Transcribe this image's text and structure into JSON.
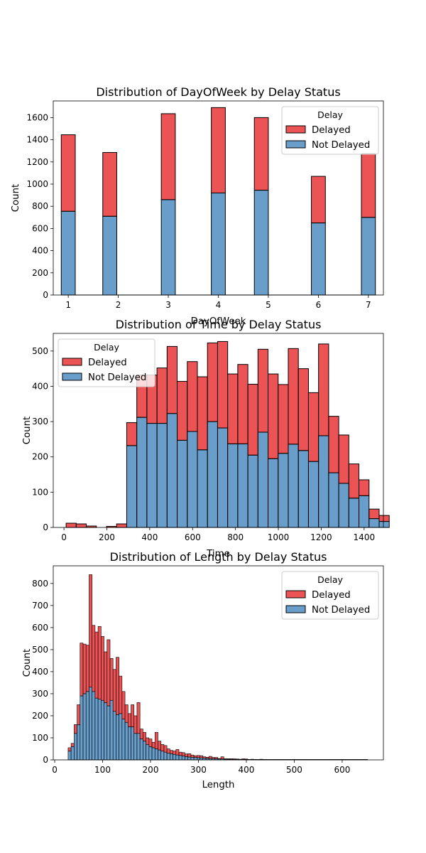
{
  "colors": {
    "delayed": "#e41a1c",
    "not_delayed": "#377eb8",
    "edge": "#000000"
  },
  "chart_data": [
    {
      "type": "bar",
      "stacked": true,
      "title": "Distribution of DayOfWeek by Delay Status",
      "xlabel": "DayOfWeek",
      "ylabel": "Count",
      "xlim": [
        0.7,
        7.3
      ],
      "ylim": [
        0,
        1750
      ],
      "xticks": [
        1,
        2,
        3,
        4,
        5,
        6,
        7
      ],
      "yticks": [
        0,
        200,
        400,
        600,
        800,
        1000,
        1200,
        1400,
        1600
      ],
      "bin_width": 0.28,
      "bins": [
        1.0,
        1.83,
        3.0,
        4.0,
        4.86,
        6.0,
        7.0
      ],
      "legend": {
        "title": "Delay",
        "position": "upper right",
        "entries": [
          "Delayed",
          "Not Delayed"
        ]
      },
      "series": [
        {
          "name": "Not Delayed",
          "values": [
            755,
            710,
            860,
            920,
            945,
            650,
            700
          ]
        },
        {
          "name": "Delayed",
          "values": [
            690,
            575,
            775,
            770,
            655,
            420,
            575
          ]
        }
      ]
    },
    {
      "type": "bar",
      "stacked": true,
      "title": "Distribution of Time by Delay Status",
      "xlabel": "Time",
      "ylabel": "Count",
      "xlim": [
        -50,
        1490
      ],
      "ylim": [
        0,
        550
      ],
      "xticks": [
        0,
        200,
        400,
        600,
        800,
        1000,
        1200,
        1400
      ],
      "yticks": [
        0,
        100,
        200,
        300,
        400,
        500
      ],
      "bin_start": 10,
      "bin_width": 47.1,
      "legend": {
        "title": "Delay",
        "position": "upper left",
        "entries": [
          "Delayed",
          "Not Delayed"
        ]
      },
      "series": [
        {
          "name": "Not Delayed",
          "values": [
            0,
            0,
            0,
            0,
            0,
            0,
            232,
            312,
            295,
            295,
            323,
            247,
            272,
            220,
            300,
            282,
            237,
            237,
            205,
            270,
            195,
            210,
            236,
            218,
            187,
            260,
            155,
            125,
            83,
            90,
            25,
            17
          ]
        },
        {
          "name": "Delayed",
          "values": [
            12,
            10,
            4,
            0,
            3,
            10,
            65,
            120,
            137,
            157,
            190,
            167,
            198,
            207,
            223,
            245,
            198,
            225,
            201,
            235,
            240,
            195,
            271,
            232,
            195,
            260,
            160,
            137,
            97,
            45,
            27,
            17
          ]
        }
      ]
    },
    {
      "type": "bar",
      "stacked": true,
      "title": "Distribution of Length by Delay Status",
      "xlabel": "Length",
      "ylabel": "Count",
      "xlim": [
        -3,
        686
      ],
      "ylim": [
        0,
        880
      ],
      "xticks": [
        0,
        100,
        200,
        300,
        400,
        500,
        600
      ],
      "yticks": [
        0,
        100,
        200,
        300,
        400,
        500,
        600,
        700,
        800
      ],
      "bin_start": 28,
      "bin_width": 6.25,
      "legend": {
        "title": "Delay",
        "position": "upper right",
        "entries": [
          "Delayed",
          "Not Delayed"
        ]
      },
      "series": [
        {
          "name": "Not Delayed",
          "values": [
            40,
            60,
            120,
            160,
            290,
            300,
            310,
            330,
            310,
            280,
            275,
            270,
            260,
            245,
            270,
            220,
            205,
            210,
            185,
            170,
            150,
            150,
            120,
            120,
            95,
            85,
            70,
            60,
            55,
            50,
            45,
            40,
            35,
            30,
            28,
            25,
            22,
            20,
            18,
            15,
            13,
            12,
            11,
            10,
            9,
            8,
            7,
            6,
            6,
            5,
            4,
            4,
            3,
            3,
            3,
            2,
            2,
            2,
            2,
            2,
            1,
            1,
            1,
            1,
            1,
            1,
            1,
            1,
            1,
            1,
            1,
            1,
            1,
            1,
            1,
            1,
            1,
            1,
            1,
            1,
            1,
            1,
            1,
            1,
            1,
            1,
            1,
            1,
            1,
            1,
            1,
            1,
            1,
            1,
            1,
            1,
            1,
            1,
            1,
            1
          ]
        },
        {
          "name": "Delayed",
          "values": [
            15,
            15,
            40,
            90,
            240,
            225,
            210,
            510,
            300,
            300,
            330,
            290,
            230,
            300,
            190,
            190,
            260,
            170,
            125,
            80,
            60,
            100,
            80,
            140,
            45,
            40,
            30,
            35,
            25,
            75,
            40,
            30,
            30,
            20,
            15,
            15,
            25,
            15,
            15,
            12,
            15,
            10,
            8,
            10,
            10,
            6,
            5,
            10,
            5,
            6,
            2,
            10,
            2,
            2,
            2,
            3,
            2,
            1,
            3,
            2,
            1,
            2,
            1,
            1,
            2,
            1,
            1,
            1,
            1,
            1,
            1,
            1,
            1,
            1,
            1,
            1,
            1,
            1,
            1,
            1,
            1,
            1,
            1,
            1,
            1,
            1,
            1,
            1,
            1,
            1,
            1,
            1,
            1,
            1,
            1,
            1,
            1,
            1,
            1,
            1
          ]
        }
      ]
    }
  ]
}
